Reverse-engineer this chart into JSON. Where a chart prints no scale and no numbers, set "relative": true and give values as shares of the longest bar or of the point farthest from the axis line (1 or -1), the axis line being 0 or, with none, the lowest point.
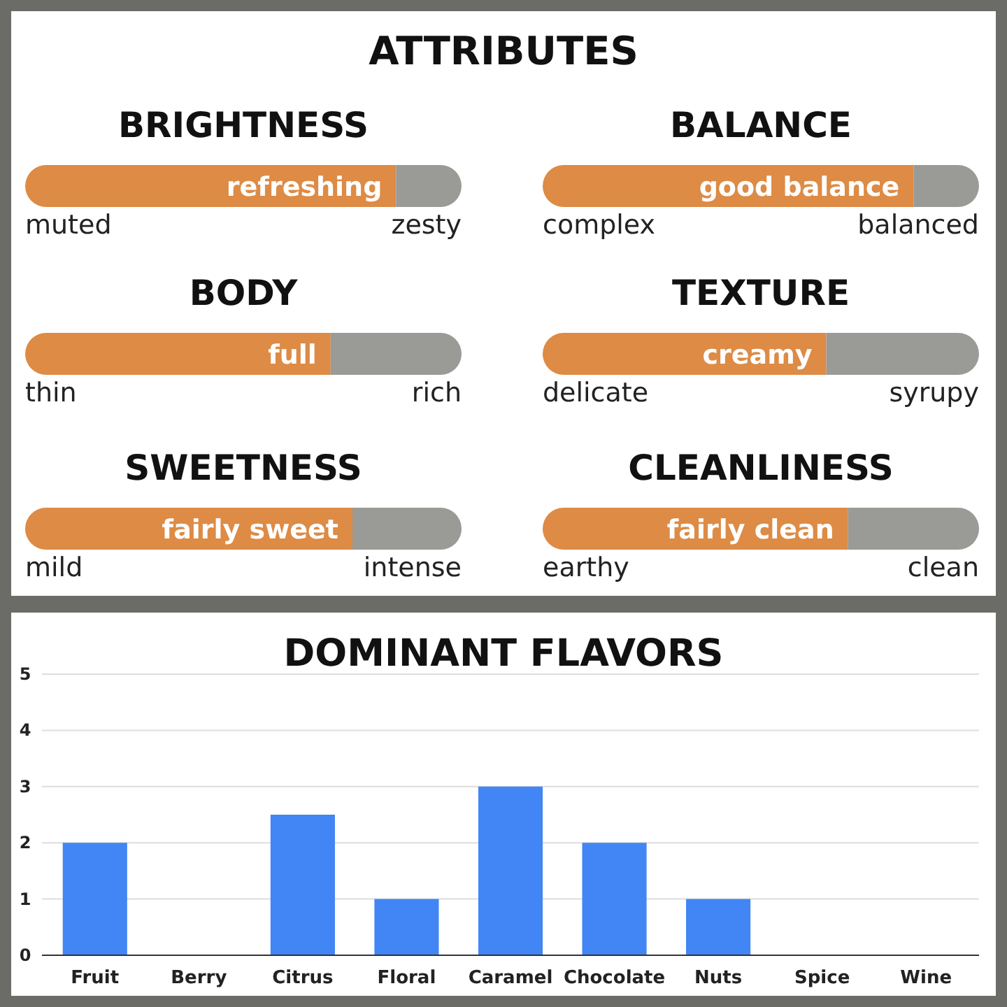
{
  "chart_data": [
    {
      "type": "other",
      "title": "ATTRIBUTES"
    },
    {
      "type": "bar",
      "orientation": "horizontal",
      "stacked": true,
      "relative": true,
      "title": "BRIGHTNESS",
      "categories": [
        null
      ],
      "annotations": [
        "refreshing",
        "muted",
        "zesty"
      ],
      "series": [
        {
          "color": "#dd8b45",
          "values": [
            0.85
          ]
        },
        {
          "color": "#9a9a96",
          "values": [
            0.15
          ]
        }
      ]
    },
    {
      "type": "bar",
      "orientation": "horizontal",
      "stacked": true,
      "relative": true,
      "title": "BALANCE",
      "categories": [
        null
      ],
      "annotations": [
        "good balance",
        "complex",
        "balanced"
      ],
      "series": [
        {
          "color": "#dd8b45",
          "values": [
            0.85
          ]
        },
        {
          "color": "#9a9a96",
          "values": [
            0.15
          ]
        }
      ]
    },
    {
      "type": "bar",
      "orientation": "horizontal",
      "stacked": true,
      "relative": true,
      "title": "BODY",
      "categories": [
        null
      ],
      "annotations": [
        "full",
        "thin",
        "rich"
      ],
      "series": [
        {
          "color": "#dd8b45",
          "values": [
            0.7
          ]
        },
        {
          "color": "#9a9a96",
          "values": [
            0.3
          ]
        }
      ]
    },
    {
      "type": "bar",
      "orientation": "horizontal",
      "stacked": true,
      "relative": true,
      "title": "TEXTURE",
      "categories": [
        null
      ],
      "annotations": [
        "creamy",
        "delicate",
        "syrupy"
      ],
      "series": [
        {
          "color": "#dd8b45",
          "values": [
            0.65
          ]
        },
        {
          "color": "#9a9a96",
          "values": [
            0.35
          ]
        }
      ]
    },
    {
      "type": "bar",
      "orientation": "horizontal",
      "stacked": true,
      "relative": true,
      "title": "SWEETNESS",
      "categories": [
        null
      ],
      "annotations": [
        "fairly sweet",
        "mild",
        "intense"
      ],
      "series": [
        {
          "color": "#dd8b45",
          "values": [
            0.75
          ]
        },
        {
          "color": "#9a9a96",
          "values": [
            0.25
          ]
        }
      ]
    },
    {
      "type": "bar",
      "orientation": "horizontal",
      "stacked": true,
      "relative": true,
      "title": "CLEANLINESS",
      "categories": [
        null
      ],
      "annotations": [
        "fairly clean",
        "earthy",
        "clean"
      ],
      "series": [
        {
          "color": "#dd8b45",
          "values": [
            0.7
          ]
        },
        {
          "color": "#9a9a96",
          "values": [
            0.3
          ]
        }
      ]
    },
    {
      "type": "bar",
      "title": "DOMINANT FLAVORS",
      "categories": [
        "Fruit",
        "Berry",
        "Citrus",
        "Floral",
        "Caramel",
        "Chocolate",
        "Nuts",
        "Spice",
        "Wine"
      ],
      "values": [
        2,
        0,
        2.5,
        1,
        3,
        2,
        1,
        0,
        0
      ],
      "color": "#4285f4",
      "ylim": [
        0,
        5
      ],
      "yticks": [
        0,
        1,
        2,
        3,
        4,
        5
      ],
      "grid": "y"
    }
  ]
}
